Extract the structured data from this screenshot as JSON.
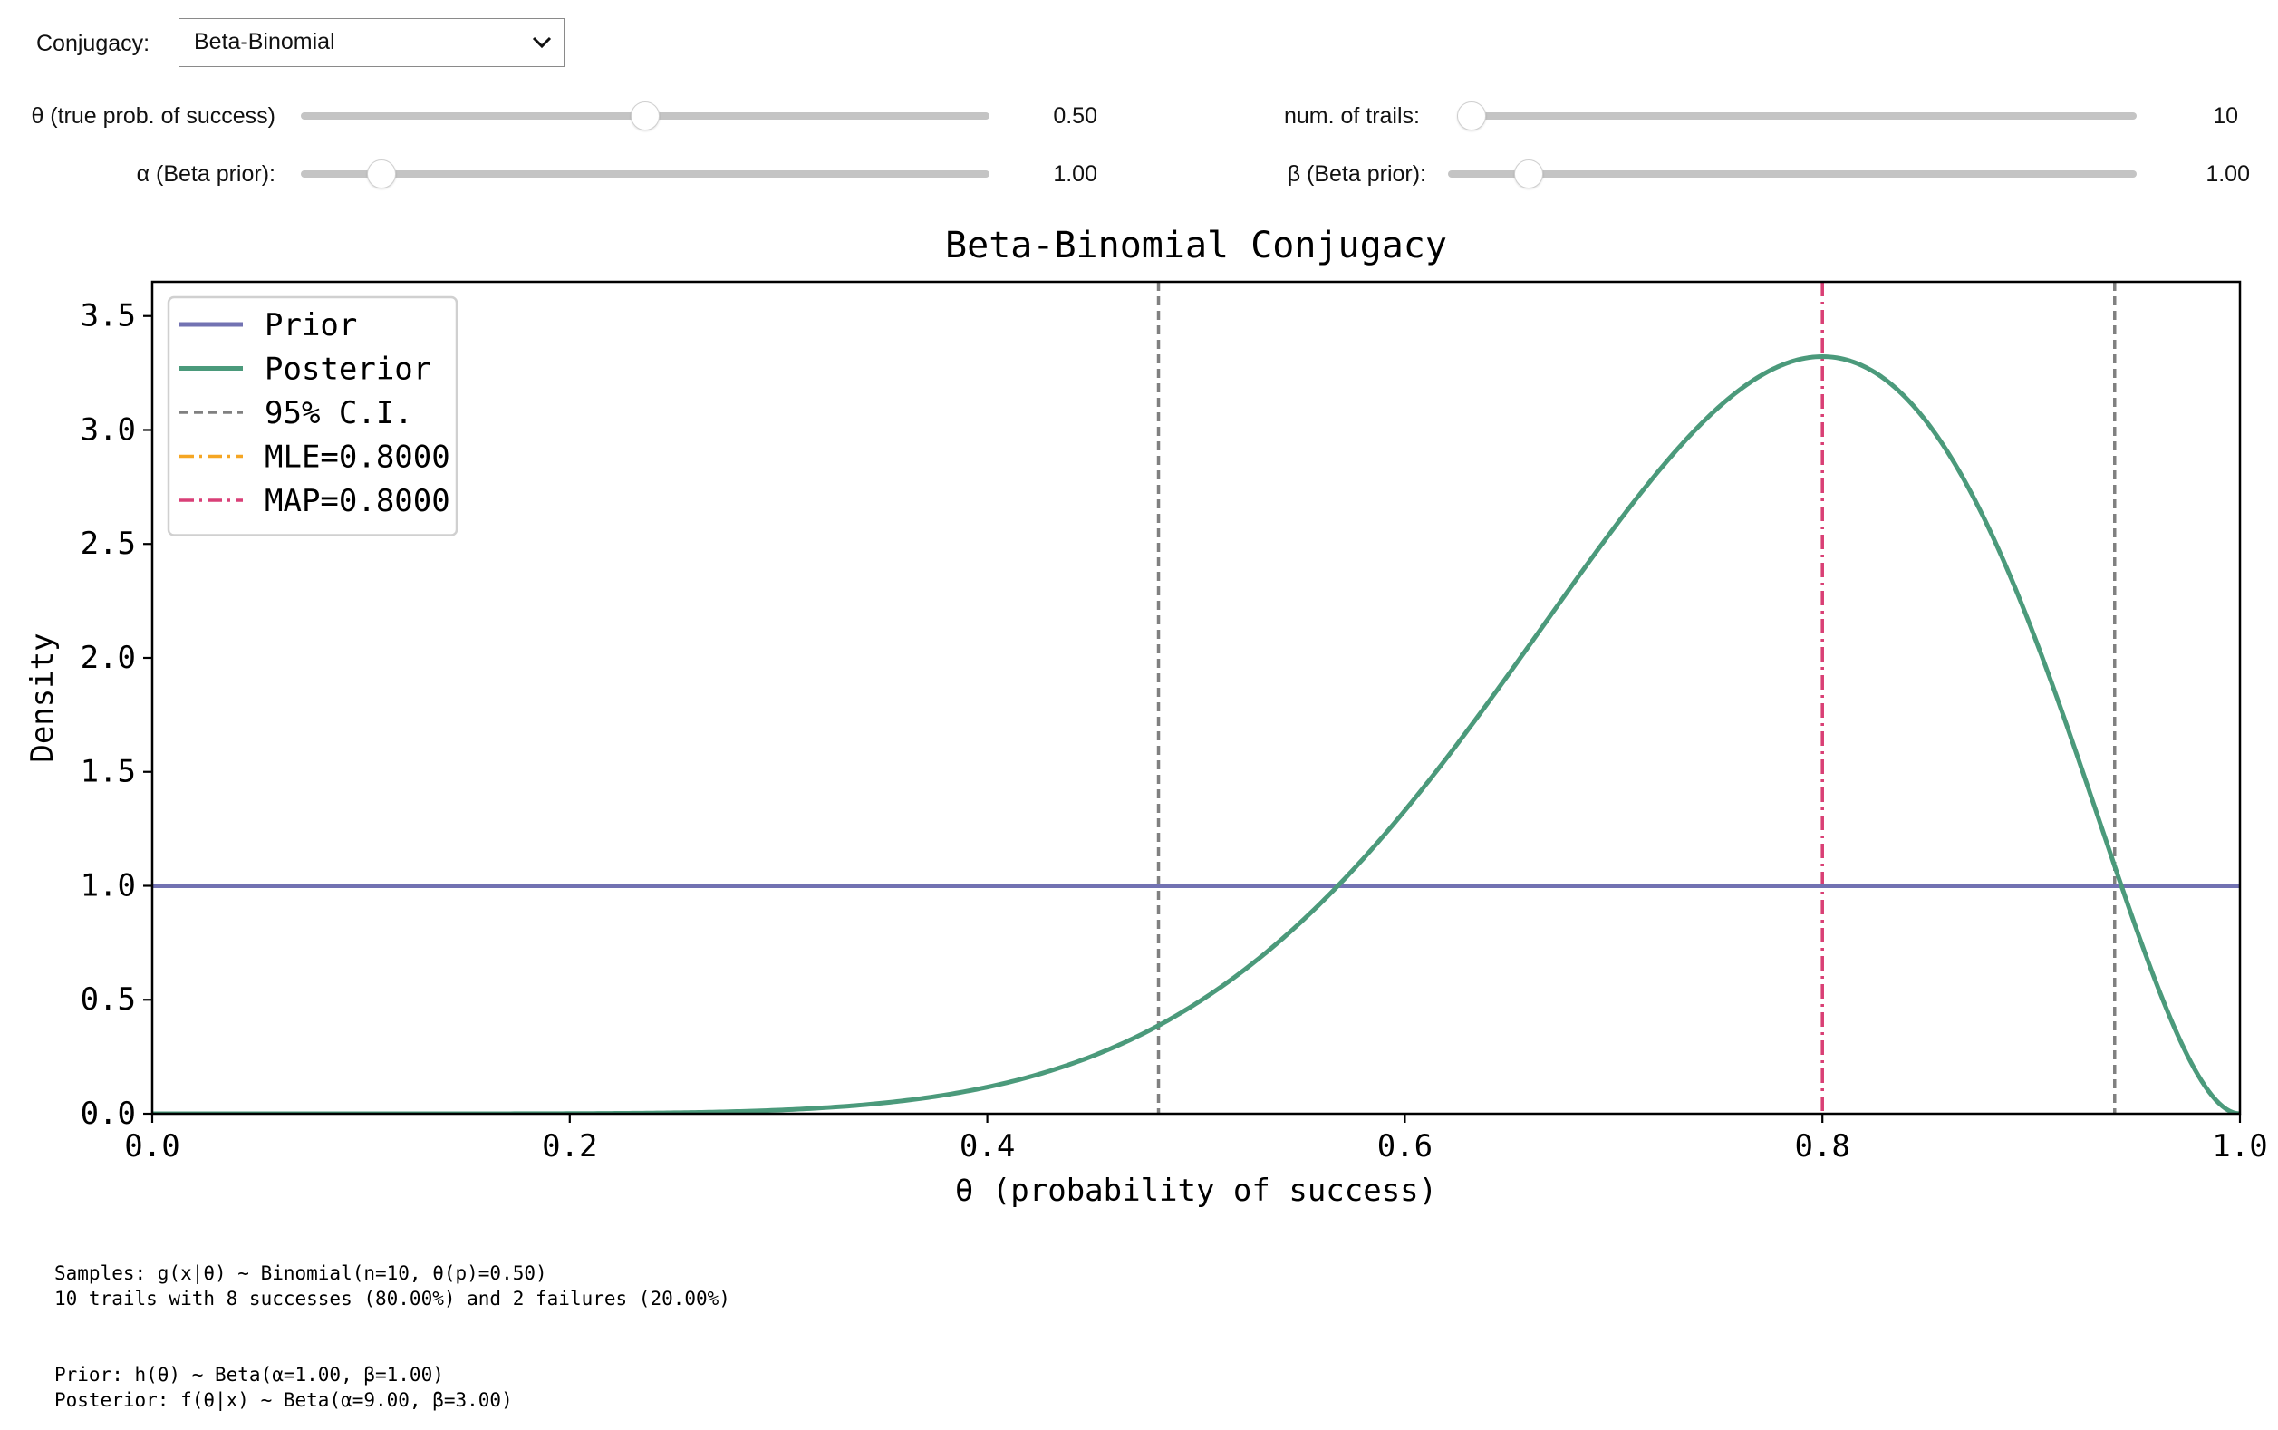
{
  "controls": {
    "conjugacy": {
      "label": "Conjugacy:",
      "value": "Beta-Binomial"
    },
    "theta": {
      "label": "θ (true prob. of success)",
      "value_text": "0.50",
      "value": 0.5,
      "min": 0,
      "max": 1
    },
    "trials": {
      "label": "num. of trails:",
      "value_text": "10",
      "value": 10,
      "min": 10,
      "max": 1000
    },
    "alpha": {
      "label": "α (Beta prior):",
      "value_text": "1.00",
      "value": 1.0,
      "min": 0,
      "max": 10
    },
    "beta": {
      "label": "β (Beta prior):",
      "value_text": "1.00",
      "value": 1.0,
      "min": 0,
      "max": 10
    }
  },
  "chart_data": {
    "type": "line",
    "title": "Beta-Binomial Conjugacy",
    "xlabel": "θ (probability of success)",
    "ylabel": "Density",
    "xlim": [
      0.0,
      1.0
    ],
    "ylim": [
      0.0,
      3.65
    ],
    "x_ticks": [
      "0.0",
      "0.2",
      "0.4",
      "0.6",
      "0.8",
      "1.0"
    ],
    "x_tick_values": [
      0.0,
      0.2,
      0.4,
      0.6,
      0.8,
      1.0
    ],
    "y_ticks": [
      "0.0",
      "0.5",
      "1.0",
      "1.5",
      "2.0",
      "2.5",
      "3.0",
      "3.5"
    ],
    "y_tick_values": [
      0.0,
      0.5,
      1.0,
      1.5,
      2.0,
      2.5,
      3.0,
      3.5
    ],
    "grid": false,
    "legend_position": "upper-left",
    "series": [
      {
        "name": "Prior",
        "color": "#7272b2",
        "style": "solid",
        "distribution": "Beta",
        "a": 1.0,
        "b": 1.0
      },
      {
        "name": "Posterior",
        "color": "#4b9a7b",
        "style": "solid",
        "distribution": "Beta",
        "a": 9.0,
        "b": 3.0
      }
    ],
    "vlines": [
      {
        "name": "95% C.I.",
        "color": "#808080",
        "style": "dashed",
        "x": [
          0.482,
          0.94
        ]
      },
      {
        "name": "MLE=0.8000",
        "color": "#f5a623",
        "style": "dashdot",
        "x": [
          0.8
        ]
      },
      {
        "name": "MAP=0.8000",
        "color": "#d93f77",
        "style": "dashdot",
        "x": [
          0.8
        ]
      }
    ]
  },
  "output": {
    "samples_line1": "Samples: g(x|θ) ~ Binomial(n=10, θ(p)=0.50)",
    "samples_line2": "10 trails with 8 successes (80.00%) and 2 failures (20.00%)",
    "prior_line": "Prior: h(θ) ~ Beta(α=1.00, β=1.00)",
    "posterior_line": "Posterior: f(θ|x) ~ Beta(α=9.00, β=3.00)"
  }
}
